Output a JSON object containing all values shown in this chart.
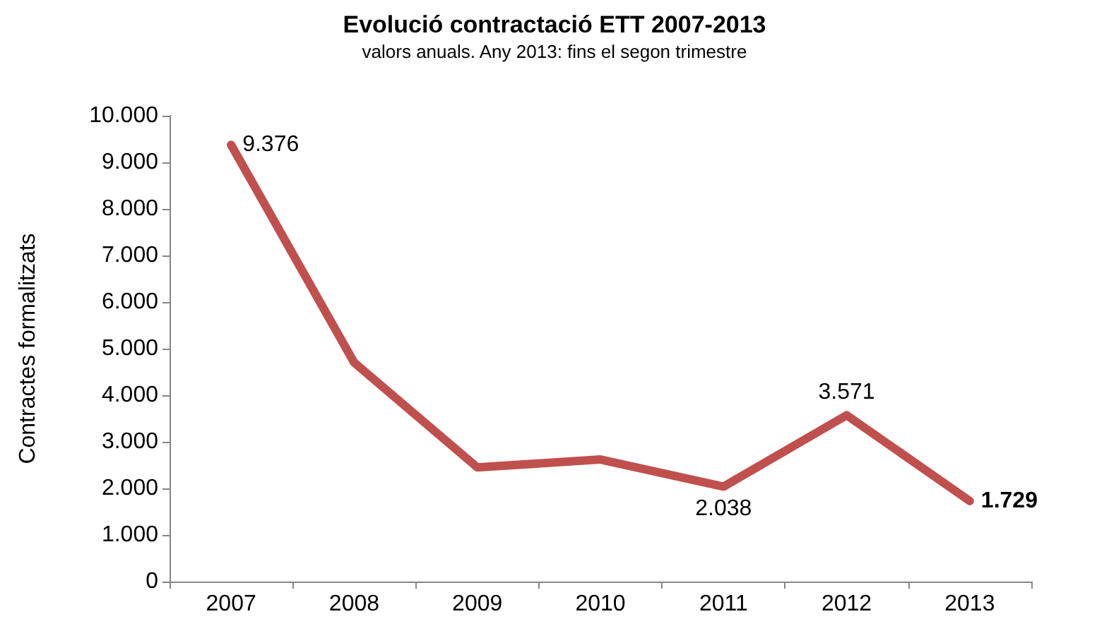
{
  "chart_data": {
    "type": "line",
    "title": "Evolució contractació ETT 2007-2013",
    "subtitle": "valors anuals. Any 2013: fins el segon trimestre",
    "ylabel": "Contractes formalitzats",
    "categories": [
      "2007",
      "2008",
      "2009",
      "2010",
      "2011",
      "2012",
      "2013"
    ],
    "series": [
      {
        "color": "#c0504d",
        "values": [
          9376,
          4700,
          2450,
          2620,
          2038,
          3571,
          1729
        ],
        "value_labels": [
          "9.376",
          null,
          null,
          null,
          "2.038",
          "3.571",
          "1.729"
        ]
      }
    ],
    "ylim": [
      0,
      10000
    ],
    "yticks": [
      {
        "value": 0,
        "label": "0"
      },
      {
        "value": 1000,
        "label": "1.000"
      },
      {
        "value": 2000,
        "label": "2.000"
      },
      {
        "value": 3000,
        "label": "3.000"
      },
      {
        "value": 4000,
        "label": "4.000"
      },
      {
        "value": 5000,
        "label": "5.000"
      },
      {
        "value": 6000,
        "label": "6.000"
      },
      {
        "value": 7000,
        "label": "7.000"
      },
      {
        "value": 8000,
        "label": "8.000"
      },
      {
        "value": 9000,
        "label": "9.000"
      },
      {
        "value": 10000,
        "label": "10.000"
      }
    ],
    "grid": false,
    "marker": "none",
    "line_style": "solid"
  }
}
